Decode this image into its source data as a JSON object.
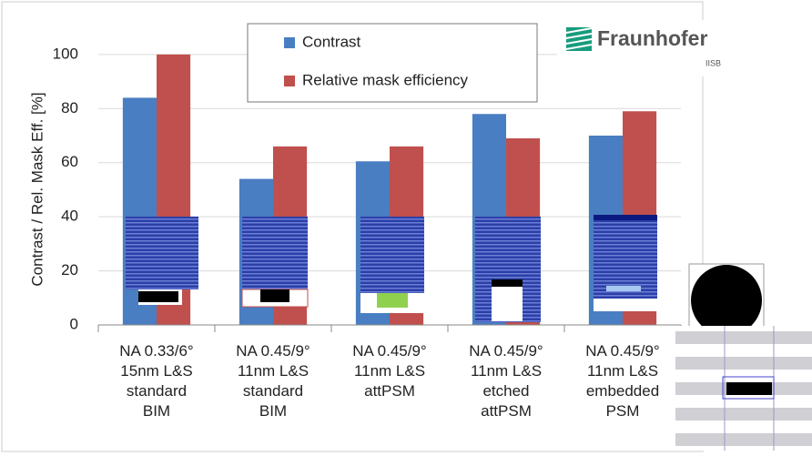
{
  "chart_data": {
    "type": "bar",
    "y_label": "Contrast / Rel. Mask Eff. [%]",
    "categories": [
      "NA 0.33/6°\n15nm L&S\nstandard\nBIM",
      "NA 0.45/9°\n11nm L&S\nstandard\nBIM",
      "NA 0.45/9°\n11nm L&S\nattPSM",
      "NA 0.45/9°\n11nm L&S\netched\nattPSM",
      "NA 0.45/9°\n11nm L&S\nembedded\nPSM"
    ],
    "series": [
      {
        "name": "Contrast",
        "color": "#4a7ec2",
        "values": [
          84,
          54,
          60.5,
          78,
          70
        ]
      },
      {
        "name": "Relative mask efficiency",
        "color": "#c0504d",
        "values": [
          100,
          66,
          66,
          69,
          79
        ]
      }
    ],
    "ylim": [
      0,
      105
    ],
    "yticks": [
      0,
      20,
      40,
      60,
      80,
      100
    ],
    "grid": true,
    "annotations": [
      "Fraunhofer",
      "IISB"
    ]
  }
}
